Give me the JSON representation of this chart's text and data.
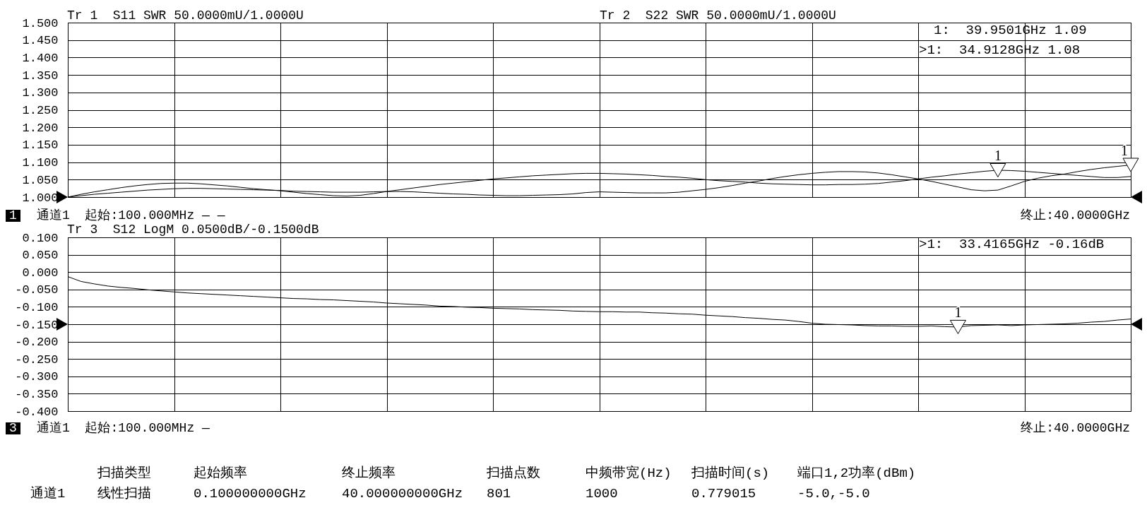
{
  "chart_data": [
    {
      "type": "line",
      "categories": [
        null,
        null,
        null,
        null,
        null,
        null,
        null,
        null,
        null,
        null,
        null,
        null,
        null,
        null,
        null,
        null,
        null,
        null,
        null,
        null,
        null,
        null,
        null,
        null,
        null,
        null,
        null,
        null,
        null,
        null,
        null,
        null,
        null,
        null,
        null,
        null,
        null,
        null,
        null,
        null,
        null,
        null,
        null,
        null,
        null,
        null,
        null,
        null,
        null,
        null,
        null,
        null,
        null,
        null,
        null,
        null,
        null,
        null,
        null,
        null,
        null,
        null,
        null,
        null,
        null,
        null,
        null,
        null,
        null,
        null,
        null,
        null,
        null,
        null,
        null,
        null,
        null,
        null,
        null,
        null,
        null
      ],
      "series": [
        {
          "color": "#000000",
          "values": [
            1.0,
            1.008,
            1.015,
            1.021,
            1.027,
            1.032,
            1.036,
            1.039,
            1.04,
            1.04,
            1.038,
            1.035,
            1.032,
            1.028,
            1.024,
            1.021,
            1.018,
            1.014,
            1.01,
            1.007,
            1.004,
            1.003,
            1.005,
            1.01,
            1.016,
            1.021,
            1.026,
            1.031,
            1.036,
            1.04,
            1.044,
            1.048,
            1.052,
            1.055,
            1.058,
            1.061,
            1.063,
            1.065,
            1.067,
            1.068,
            1.068,
            1.067,
            1.066,
            1.064,
            1.062,
            1.059,
            1.057,
            1.054,
            1.05,
            1.047,
            1.045,
            1.043,
            1.04,
            1.038,
            1.037,
            1.036,
            1.035,
            1.035,
            1.036,
            1.036,
            1.037,
            1.039,
            1.043,
            1.047,
            1.052,
            1.057,
            1.061,
            1.066,
            1.07,
            1.074,
            1.077,
            1.076,
            1.074,
            1.071,
            1.068,
            1.065,
            1.062,
            1.059,
            1.056,
            1.056,
            1.059
          ]
        },
        {
          "color": "#000000",
          "values": [
            1.0,
            1.004,
            1.008,
            1.011,
            1.014,
            1.017,
            1.02,
            1.022,
            1.024,
            1.025,
            1.025,
            1.024,
            1.023,
            1.022,
            1.021,
            1.02,
            1.019,
            1.017,
            1.016,
            1.015,
            1.014,
            1.014,
            1.014,
            1.015,
            1.016,
            1.016,
            1.015,
            1.013,
            1.011,
            1.009,
            1.008,
            1.006,
            1.005,
            1.004,
            1.004,
            1.005,
            1.006,
            1.007,
            1.009,
            1.013,
            1.015,
            1.014,
            1.013,
            1.012,
            1.012,
            1.012,
            1.014,
            1.018,
            1.022,
            1.027,
            1.033,
            1.04,
            1.046,
            1.053,
            1.059,
            1.064,
            1.068,
            1.071,
            1.073,
            1.073,
            1.072,
            1.069,
            1.064,
            1.058,
            1.052,
            1.045,
            1.037,
            1.029,
            1.021,
            1.018,
            1.02,
            1.032,
            1.045,
            1.054,
            1.061,
            1.066,
            1.073,
            1.079,
            1.084,
            1.088,
            1.092
          ]
        },
        {
          "type": "scatter",
          "name": "1",
          "color": "#000000",
          "marker": "triangle",
          "values": [
            null,
            null,
            null,
            null,
            null,
            null,
            null,
            null,
            null,
            null,
            null,
            null,
            null,
            null,
            null,
            null,
            null,
            null,
            null,
            null,
            null,
            null,
            null,
            null,
            null,
            null,
            null,
            null,
            null,
            null,
            null,
            null,
            null,
            null,
            null,
            null,
            null,
            null,
            null,
            null,
            null,
            null,
            null,
            null,
            null,
            null,
            null,
            null,
            null,
            null,
            null,
            null,
            null,
            null,
            null,
            null,
            null,
            null,
            null,
            null,
            null,
            null,
            null,
            null,
            null,
            null,
            null,
            null,
            null,
            null,
            1.077,
            null,
            null,
            null,
            null,
            null,
            null,
            null,
            null,
            null,
            1.092
          ]
        }
      ],
      "ylim": [
        1,
        1.5
      ],
      "yticks": [
        {
          "value": 1,
          "label": "1.000"
        },
        {
          "value": 1.05,
          "label": "1.050"
        },
        {
          "value": 1.1,
          "label": "1.100"
        },
        {
          "value": 1.15,
          "label": "1.150"
        },
        {
          "value": 1.2,
          "label": "1.200"
        },
        {
          "value": 1.25,
          "label": "1.250"
        },
        {
          "value": 1.3,
          "label": "1.300"
        },
        {
          "value": 1.35,
          "label": "1.350"
        },
        {
          "value": 1.4,
          "label": "1.400"
        },
        {
          "value": 1.45,
          "label": "1.450"
        },
        {
          "value": 1.5,
          "label": "1.500"
        }
      ],
      "grid": true,
      "tick_labels": "y",
      "annotations": [
        "Tr 1  S11 SWR 50.0000mU/1.0000U",
        "Tr 2  S22 SWR 50.0000mU/1.0000U",
        "1:  39.9501GHz 1.09",
        ">1:  34.9128GHz 1.08",
        "1",
        "通道1  起始:100.000MHz — —",
        "终止:40.0000GHz"
      ]
    },
    {
      "type": "line",
      "categories": [
        null,
        null,
        null,
        null,
        null,
        null,
        null,
        null,
        null,
        null,
        null,
        null,
        null,
        null,
        null,
        null,
        null,
        null,
        null,
        null,
        null,
        null,
        null,
        null,
        null,
        null,
        null,
        null,
        null,
        null,
        null,
        null,
        null,
        null,
        null,
        null,
        null,
        null,
        null,
        null,
        null,
        null,
        null,
        null,
        null,
        null,
        null,
        null,
        null,
        null,
        null,
        null,
        null,
        null,
        null,
        null,
        null,
        null,
        null,
        null,
        null,
        null,
        null,
        null,
        null,
        null,
        null,
        null,
        null,
        null,
        null,
        null,
        null,
        null,
        null,
        null,
        null,
        null,
        null,
        null,
        null
      ],
      "series": [
        {
          "color": "#000000",
          "values": [
            -0.013,
            -0.027,
            -0.034,
            -0.04,
            -0.044,
            -0.047,
            -0.051,
            -0.054,
            -0.057,
            -0.06,
            -0.062,
            -0.064,
            -0.066,
            -0.068,
            -0.07,
            -0.072,
            -0.074,
            -0.076,
            -0.077,
            -0.079,
            -0.08,
            -0.082,
            -0.084,
            -0.086,
            -0.089,
            -0.091,
            -0.093,
            -0.095,
            -0.098,
            -0.099,
            -0.101,
            -0.102,
            -0.104,
            -0.105,
            -0.106,
            -0.108,
            -0.109,
            -0.11,
            -0.112,
            -0.113,
            -0.114,
            -0.114,
            -0.115,
            -0.115,
            -0.117,
            -0.118,
            -0.12,
            -0.121,
            -0.124,
            -0.126,
            -0.128,
            -0.131,
            -0.133,
            -0.136,
            -0.138,
            -0.142,
            -0.147,
            -0.15,
            -0.151,
            -0.152,
            -0.154,
            -0.155,
            -0.155,
            -0.156,
            -0.156,
            -0.155,
            -0.157,
            -0.158,
            -0.154,
            -0.153,
            -0.152,
            -0.154,
            -0.152,
            -0.151,
            -0.15,
            -0.149,
            -0.147,
            -0.144,
            -0.142,
            -0.138,
            -0.135
          ]
        },
        {
          "type": "scatter",
          "name": "1",
          "color": "#000000",
          "marker": "triangle",
          "values": [
            null,
            null,
            null,
            null,
            null,
            null,
            null,
            null,
            null,
            null,
            null,
            null,
            null,
            null,
            null,
            null,
            null,
            null,
            null,
            null,
            null,
            null,
            null,
            null,
            null,
            null,
            null,
            null,
            null,
            null,
            null,
            null,
            null,
            null,
            null,
            null,
            null,
            null,
            null,
            null,
            null,
            null,
            null,
            null,
            null,
            null,
            null,
            null,
            null,
            null,
            null,
            null,
            null,
            null,
            null,
            null,
            null,
            null,
            null,
            null,
            null,
            null,
            null,
            null,
            null,
            null,
            null,
            -0.158,
            null,
            null,
            null,
            null,
            null,
            null,
            null,
            null,
            null,
            null,
            null,
            null,
            null
          ]
        }
      ],
      "ylim": [
        -0.4,
        0.1
      ],
      "yticks": [
        {
          "value": -0.4,
          "label": "-0.400"
        },
        {
          "value": -0.35,
          "label": "-0.350"
        },
        {
          "value": -0.3,
          "label": "-0.300"
        },
        {
          "value": -0.25,
          "label": "-0.250"
        },
        {
          "value": -0.2,
          "label": "-0.200"
        },
        {
          "value": -0.15,
          "label": "-0.150"
        },
        {
          "value": -0.1,
          "label": "-0.100"
        },
        {
          "value": -0.05,
          "label": "-0.050"
        },
        {
          "value": 0,
          "label": "0.000"
        },
        {
          "value": 0.05,
          "label": "0.050"
        },
        {
          "value": 0.1,
          "label": "0.100"
        }
      ],
      "grid": true,
      "tick_labels": "y",
      "annotations": [
        "Tr 3  S12 LogM 0.0500dB/-0.1500dB",
        ">1:  33.4165GHz -0.16dB",
        "3",
        "通道1  起始:100.000MHz —",
        "终止:40.0000GHz"
      ]
    },
    {
      "type": "other",
      "annotations": [
        "扫描类型",
        "起始频率",
        "终止频率",
        "扫描点数",
        "中频带宽(Hz)",
        "扫描时间(s)",
        "端口1,2功率(dBm)",
        "通道1",
        "线性扫描",
        "0.100000000GHz",
        "40.000000000GHz",
        "801",
        "1000",
        "0.779015",
        "-5.0,-5.0"
      ]
    }
  ]
}
